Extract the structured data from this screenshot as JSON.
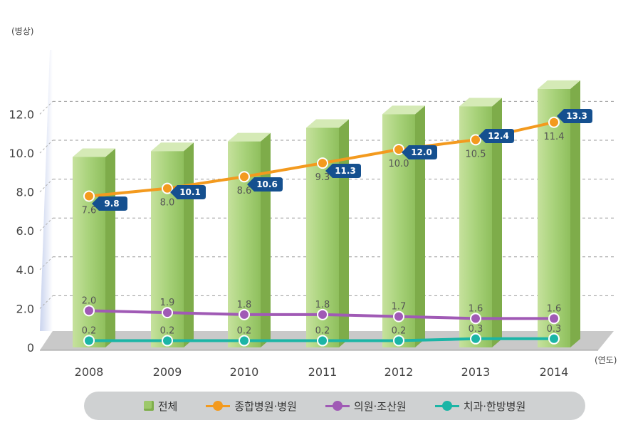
{
  "chart_data": {
    "type": "bar",
    "y_unit": "(병상)",
    "x_unit": "(연도)",
    "ylim": [
      0,
      14
    ],
    "y_ticks": [
      "0",
      "2.0",
      "4.0",
      "6.0",
      "8.0",
      "10.0",
      "12.0"
    ],
    "y_tick_values": [
      0,
      2,
      4,
      6,
      8,
      10,
      12
    ],
    "grid": "dashed",
    "legend_position": "bottom",
    "categories": [
      "2008",
      "2009",
      "2010",
      "2011",
      "2012",
      "2013",
      "2014"
    ],
    "bars": {
      "name": "전체",
      "values": [
        9.8,
        10.1,
        10.6,
        11.3,
        12.0,
        12.4,
        13.3
      ],
      "labels": [
        "9.8",
        "10.1",
        "10.6",
        "11.3",
        "12.0",
        "12.4",
        "13.3"
      ],
      "color": "#a3cd72"
    },
    "series": [
      {
        "name": "종합병원·병원",
        "values": [
          7.6,
          8.0,
          8.6,
          9.3,
          10.0,
          10.5,
          11.4
        ],
        "labels": [
          "7.6",
          "8.0",
          "8.6",
          "9.3",
          "10.0",
          "10.5",
          "11.4"
        ],
        "color": "#f39a1e"
      },
      {
        "name": "의원·조산원",
        "values": [
          2.0,
          1.9,
          1.8,
          1.8,
          1.7,
          1.6,
          1.6
        ],
        "labels": [
          "2.0",
          "1.9",
          "1.8",
          "1.8",
          "1.7",
          "1.6",
          "1.6"
        ],
        "color": "#a05ab5"
      },
      {
        "name": "치과·한방병원",
        "values": [
          0.2,
          0.2,
          0.2,
          0.2,
          0.2,
          0.3,
          0.3
        ],
        "labels": [
          "0.2",
          "0.2",
          "0.2",
          "0.2",
          "0.2",
          "0.3",
          "0.3"
        ],
        "color": "#1bb5a6"
      }
    ]
  },
  "legend": {
    "total": "전체",
    "general": "종합병원·병원",
    "clinic": "의원·조산원",
    "dental": "치과·한방병원"
  }
}
